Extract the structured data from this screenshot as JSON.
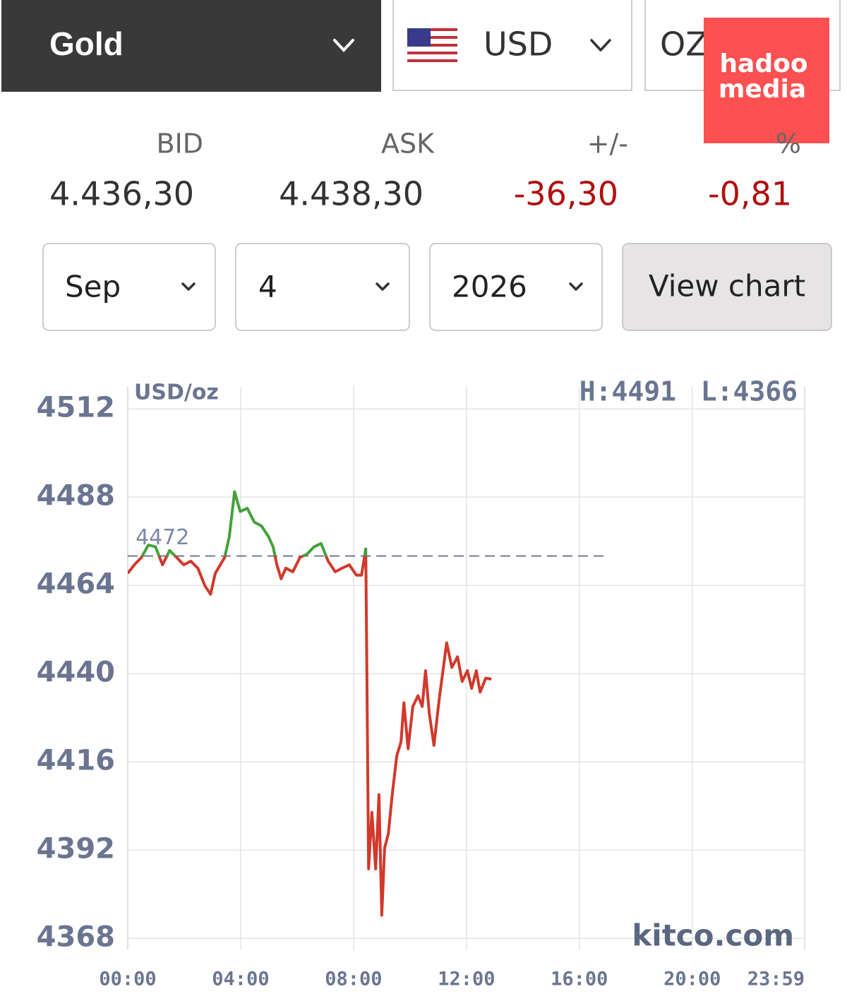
{
  "header": {
    "metal": "Gold",
    "currency": "USD",
    "unit": "OZ"
  },
  "watermark": [
    "hadoo",
    "media"
  ],
  "quote": {
    "labels": [
      "BID",
      "ASK",
      "+/-",
      "%"
    ],
    "values": [
      "4.436,30",
      "4.438,30",
      "-36,30",
      "-0,81"
    ]
  },
  "date_picker": {
    "month": "Sep",
    "day": "4",
    "year": "2026",
    "button": "View chart"
  },
  "chart_data": {
    "type": "line",
    "unit_label": "USD/oz",
    "high_label": "H:4491",
    "low_label": "L:4366",
    "source": "kitco.com",
    "color": "#d0392b",
    "above_color": "#45a03c",
    "reference_line": 4472,
    "x": [
      0,
      14,
      29,
      44,
      59,
      74,
      89,
      104,
      119,
      134,
      149,
      164,
      176,
      186,
      206,
      216,
      227,
      239,
      254,
      269,
      284,
      299,
      309,
      317,
      326,
      336,
      351,
      366,
      381,
      396,
      411,
      426,
      441,
      456,
      471,
      486,
      497,
      506,
      509,
      512,
      519,
      527,
      534,
      540,
      546,
      554,
      563,
      572,
      581,
      587,
      596,
      606,
      617,
      626,
      633,
      641,
      651,
      662,
      671,
      678,
      689,
      701,
      711,
      722,
      731,
      741,
      749,
      761,
      773
    ],
    "values": [
      4467.3,
      4469.6,
      4471.6,
      4475,
      4474.5,
      4469.6,
      4473.5,
      4471.6,
      4469.6,
      4470.6,
      4468.7,
      4463.9,
      4461.6,
      4467.3,
      4471.6,
      4477.3,
      4489.5,
      4484.1,
      4485,
      4481.2,
      4480.2,
      4477.3,
      4474.5,
      4469.6,
      4465.8,
      4468.7,
      4467.7,
      4471.6,
      4472.5,
      4474.5,
      4475.4,
      4470.6,
      4467.7,
      4468.7,
      4469.6,
      4466.8,
      4466.8,
      4473.9,
      4431.1,
      4386.9,
      4402.3,
      4386.9,
      4407.1,
      4374.3,
      4392.6,
      4396.5,
      4408,
      4417.7,
      4421.5,
      4432.1,
      4419.6,
      4431.1,
      4434,
      4431.1,
      4440.8,
      4429.2,
      4420.5,
      4433,
      4441.7,
      4448.4,
      4441.7,
      4444.6,
      4437.9,
      4440.8,
      4436,
      4440.8,
      4435,
      4438.8,
      4438.5
    ],
    "xlim": [
      0,
      1439
    ],
    "xticks": [
      {
        "value": 0,
        "label": "00:00"
      },
      {
        "value": 240,
        "label": "04:00"
      },
      {
        "value": 480,
        "label": "08:00"
      },
      {
        "value": 720,
        "label": "12:00"
      },
      {
        "value": 960,
        "label": "16:00"
      },
      {
        "value": 1200,
        "label": "20:00"
      },
      {
        "value": 1439,
        "label": "23:59"
      }
    ],
    "ylim": [
      4365,
      4518
    ],
    "yticks": [
      4368,
      4392,
      4416,
      4440,
      4464,
      4488,
      4512
    ],
    "grid": true
  }
}
